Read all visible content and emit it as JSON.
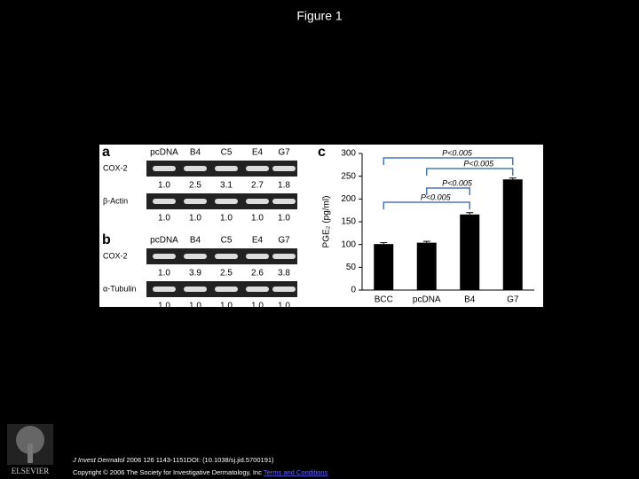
{
  "title": "Figure 1",
  "gel": [
    {
      "label": "a",
      "lanes": [
        "pcDNA",
        "B4",
        "C5",
        "E4",
        "G7"
      ],
      "rows": [
        {
          "name": "COX-2",
          "values": [
            "1.0",
            "2.5",
            "3.1",
            "2.7",
            "1.8"
          ]
        },
        {
          "name": "β-Actin",
          "values": [
            "1.0",
            "1.0",
            "1.0",
            "1.0",
            "1.0"
          ]
        }
      ]
    },
    {
      "label": "b",
      "lanes": [
        "pcDNA",
        "B4",
        "C5",
        "E4",
        "G7"
      ],
      "rows": [
        {
          "name": "COX-2",
          "values": [
            "1.0",
            "3.9",
            "2.5",
            "2.6",
            "3.8"
          ]
        },
        {
          "name": "α-Tubulin",
          "values": [
            "1.0",
            "1.0",
            "1.0",
            "1.0",
            "1.0"
          ]
        }
      ]
    }
  ],
  "chart_data": {
    "type": "bar",
    "panel_label": "c",
    "y_label": "PGE₂ (pg/ml)",
    "categories": [
      "BCC",
      "pcDNA",
      "B4",
      "G7"
    ],
    "values": [
      101,
      104,
      166,
      243
    ],
    "errors": [
      3,
      3,
      4,
      3
    ],
    "color": "#000000",
    "ylim": [
      0,
      300
    ],
    "yticks": [
      0,
      50,
      100,
      150,
      200,
      250,
      300
    ],
    "annotations": [
      "P<0.005",
      "P<0.005",
      "P<0.005",
      "P<0.005"
    ]
  },
  "footer": {
    "journal": "J Invest Dermatol",
    "citation": " 2006 126 1143-1151DOI: (10.1038/sj.jid.5700191) ",
    "copyright": "Copyright © 2006 The Society for Investigative Dermatology, Inc ",
    "link": "Terms and Conditions"
  },
  "logo": "ELSEVIER"
}
